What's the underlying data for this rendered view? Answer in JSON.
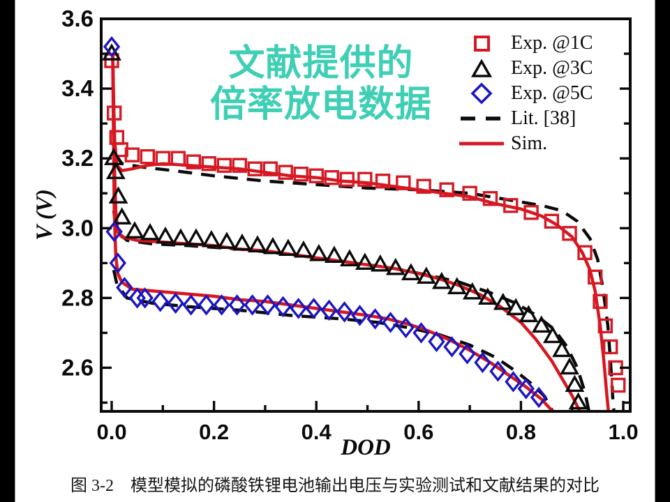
{
  "overlay": {
    "line1": "文献提供的",
    "line2": "倍率放电数据",
    "color": "#3ecfb4"
  },
  "caption": "图 3-2　模型模拟的磷酸铁锂电池输出电压与实验测试和文献结果的对比",
  "legend": {
    "items": [
      {
        "label": "Exp. @1C",
        "marker": "square",
        "color": "#d41a24"
      },
      {
        "label": "Exp. @3C",
        "marker": "triangle",
        "color": "#0a0a0a"
      },
      {
        "label": "Exp. @5C",
        "marker": "diamond",
        "color": "#1c15c0"
      },
      {
        "label": "Lit. [38]",
        "marker": "dashed-line",
        "color": "#0a0a0a"
      },
      {
        "label": "Sim.",
        "marker": "solid-line",
        "color": "#d41a24"
      }
    ]
  },
  "chart_data": {
    "type": "line",
    "xlabel": "DOD",
    "ylabel": "V (V)",
    "xlim": [
      -0.0205,
      1.0136
    ],
    "ylim": [
      2.475,
      3.6
    ],
    "xticks": {
      "values": [
        0.0,
        0.2,
        0.4,
        0.6,
        0.8,
        1.0
      ],
      "labels": [
        "0.0",
        "0.2",
        "0.4",
        "0.6",
        "0.8",
        "1.0"
      ]
    },
    "yticks": {
      "values": [
        2.6,
        2.8,
        3.0,
        3.2,
        3.4,
        3.6
      ],
      "labels": [
        "2.6",
        "2.8",
        "3.0",
        "3.2",
        "3.4",
        "3.6"
      ]
    },
    "xminor": [
      0.1,
      0.3,
      0.5,
      0.7,
      0.9
    ],
    "yminor": [
      2.5,
      2.7,
      2.9,
      3.1,
      3.3,
      3.5
    ],
    "grid": false,
    "legend_position": "top-right",
    "series": [
      {
        "name": "Lit. [38]",
        "kind": "line",
        "dash": true,
        "color": "#0a0a0a",
        "curves": [
          [
            [
              0.003,
              3.28
            ],
            [
              0.008,
              3.21
            ],
            [
              0.02,
              3.185
            ],
            [
              0.06,
              3.175
            ],
            [
              0.12,
              3.165
            ],
            [
              0.2,
              3.15
            ],
            [
              0.3,
              3.135
            ],
            [
              0.4,
              3.125
            ],
            [
              0.5,
              3.115
            ],
            [
              0.6,
              3.11
            ],
            [
              0.7,
              3.1
            ],
            [
              0.78,
              3.08
            ],
            [
              0.84,
              3.065
            ],
            [
              0.88,
              3.05
            ],
            [
              0.91,
              3.02
            ],
            [
              0.935,
              2.97
            ],
            [
              0.95,
              2.91
            ],
            [
              0.96,
              2.83
            ],
            [
              0.97,
              2.72
            ],
            [
              0.975,
              2.62
            ],
            [
              0.98,
              2.5
            ],
            [
              0.982,
              2.475
            ]
          ],
          [
            [
              0.004,
              3.05
            ],
            [
              0.01,
              2.99
            ],
            [
              0.03,
              2.965
            ],
            [
              0.08,
              2.955
            ],
            [
              0.15,
              2.95
            ],
            [
              0.25,
              2.94
            ],
            [
              0.35,
              2.925
            ],
            [
              0.45,
              2.905
            ],
            [
              0.55,
              2.885
            ],
            [
              0.62,
              2.865
            ],
            [
              0.68,
              2.845
            ],
            [
              0.74,
              2.815
            ],
            [
              0.79,
              2.785
            ],
            [
              0.83,
              2.75
            ],
            [
              0.865,
              2.71
            ],
            [
              0.89,
              2.66
            ],
            [
              0.91,
              2.6
            ],
            [
              0.925,
              2.53
            ],
            [
              0.933,
              2.475
            ]
          ],
          [
            [
              0.004,
              2.88
            ],
            [
              0.01,
              2.84
            ],
            [
              0.03,
              2.8
            ],
            [
              0.08,
              2.785
            ],
            [
              0.15,
              2.775
            ],
            [
              0.25,
              2.765
            ],
            [
              0.35,
              2.75
            ],
            [
              0.45,
              2.74
            ],
            [
              0.52,
              2.73
            ],
            [
              0.58,
              2.715
            ],
            [
              0.64,
              2.695
            ],
            [
              0.7,
              2.665
            ],
            [
              0.75,
              2.63
            ],
            [
              0.79,
              2.59
            ],
            [
              0.82,
              2.555
            ],
            [
              0.845,
              2.52
            ],
            [
              0.862,
              2.475
            ]
          ]
        ]
      },
      {
        "name": "Sim.",
        "kind": "line",
        "dash": false,
        "color": "#d8161f",
        "curves": [
          [
            [
              0.002,
              3.5
            ],
            [
              0.004,
              3.35
            ],
            [
              0.006,
              3.25
            ],
            [
              0.01,
              3.18
            ],
            [
              0.02,
              3.165
            ],
            [
              0.04,
              3.17
            ],
            [
              0.07,
              3.18
            ],
            [
              0.1,
              3.185
            ],
            [
              0.15,
              3.18
            ],
            [
              0.2,
              3.175
            ],
            [
              0.25,
              3.17
            ],
            [
              0.3,
              3.16
            ],
            [
              0.35,
              3.15
            ],
            [
              0.4,
              3.145
            ],
            [
              0.45,
              3.135
            ],
            [
              0.5,
              3.13
            ],
            [
              0.55,
              3.12
            ],
            [
              0.6,
              3.11
            ],
            [
              0.65,
              3.1
            ],
            [
              0.7,
              3.09
            ],
            [
              0.75,
              3.07
            ],
            [
              0.8,
              3.055
            ],
            [
              0.84,
              3.035
            ],
            [
              0.87,
              3.01
            ],
            [
              0.9,
              2.975
            ],
            [
              0.92,
              2.93
            ],
            [
              0.935,
              2.88
            ],
            [
              0.945,
              2.82
            ],
            [
              0.955,
              2.72
            ],
            [
              0.962,
              2.62
            ],
            [
              0.968,
              2.52
            ],
            [
              0.971,
              2.475
            ]
          ],
          [
            [
              0.002,
              3.5
            ],
            [
              0.005,
              3.2
            ],
            [
              0.008,
              3.05
            ],
            [
              0.012,
              2.99
            ],
            [
              0.02,
              2.975
            ],
            [
              0.05,
              2.965
            ],
            [
              0.1,
              2.96
            ],
            [
              0.15,
              2.955
            ],
            [
              0.2,
              2.95
            ],
            [
              0.25,
              2.94
            ],
            [
              0.3,
              2.935
            ],
            [
              0.35,
              2.925
            ],
            [
              0.4,
              2.915
            ],
            [
              0.45,
              2.905
            ],
            [
              0.5,
              2.895
            ],
            [
              0.55,
              2.885
            ],
            [
              0.6,
              2.87
            ],
            [
              0.64,
              2.855
            ],
            [
              0.68,
              2.835
            ],
            [
              0.72,
              2.81
            ],
            [
              0.76,
              2.775
            ],
            [
              0.8,
              2.73
            ],
            [
              0.83,
              2.68
            ],
            [
              0.86,
              2.62
            ],
            [
              0.88,
              2.57
            ],
            [
              0.9,
              2.52
            ],
            [
              0.915,
              2.475
            ]
          ],
          [
            [
              0.002,
              3.48
            ],
            [
              0.005,
              3.05
            ],
            [
              0.008,
              2.92
            ],
            [
              0.012,
              2.87
            ],
            [
              0.02,
              2.845
            ],
            [
              0.04,
              2.825
            ],
            [
              0.08,
              2.82
            ],
            [
              0.12,
              2.815
            ],
            [
              0.16,
              2.81
            ],
            [
              0.2,
              2.805
            ],
            [
              0.25,
              2.795
            ],
            [
              0.3,
              2.79
            ],
            [
              0.35,
              2.78
            ],
            [
              0.4,
              2.77
            ],
            [
              0.45,
              2.76
            ],
            [
              0.5,
              2.75
            ],
            [
              0.54,
              2.74
            ],
            [
              0.58,
              2.725
            ],
            [
              0.62,
              2.705
            ],
            [
              0.66,
              2.68
            ],
            [
              0.7,
              2.65
            ],
            [
              0.74,
              2.615
            ],
            [
              0.78,
              2.575
            ],
            [
              0.81,
              2.545
            ],
            [
              0.84,
              2.51
            ],
            [
              0.862,
              2.475
            ]
          ]
        ]
      },
      {
        "name": "Exp. @1C",
        "kind": "markers",
        "marker": "square",
        "color": "#d41a24",
        "points": [
          [
            0.0,
            3.48
          ],
          [
            0.005,
            3.33
          ],
          [
            0.01,
            3.26
          ],
          [
            0.018,
            3.225
          ],
          [
            0.04,
            3.21
          ],
          [
            0.07,
            3.205
          ],
          [
            0.1,
            3.2
          ],
          [
            0.13,
            3.2
          ],
          [
            0.16,
            3.19
          ],
          [
            0.19,
            3.185
          ],
          [
            0.22,
            3.18
          ],
          [
            0.25,
            3.18
          ],
          [
            0.28,
            3.17
          ],
          [
            0.31,
            3.17
          ],
          [
            0.34,
            3.16
          ],
          [
            0.37,
            3.155
          ],
          [
            0.4,
            3.15
          ],
          [
            0.43,
            3.145
          ],
          [
            0.46,
            3.14
          ],
          [
            0.495,
            3.14
          ],
          [
            0.53,
            3.135
          ],
          [
            0.57,
            3.13
          ],
          [
            0.61,
            3.12
          ],
          [
            0.655,
            3.11
          ],
          [
            0.7,
            3.1
          ],
          [
            0.74,
            3.085
          ],
          [
            0.78,
            3.065
          ],
          [
            0.82,
            3.045
          ],
          [
            0.86,
            3.02
          ],
          [
            0.895,
            2.985
          ],
          [
            0.925,
            2.93
          ],
          [
            0.945,
            2.86
          ],
          [
            0.955,
            2.79
          ],
          [
            0.965,
            2.72
          ],
          [
            0.975,
            2.66
          ],
          [
            0.985,
            2.6
          ],
          [
            0.99,
            2.55
          ]
        ]
      },
      {
        "name": "Exp. @3C",
        "kind": "markers",
        "marker": "triangle",
        "color": "#0a0a0a",
        "points": [
          [
            0.0,
            3.5
          ],
          [
            0.004,
            3.2
          ],
          [
            0.008,
            3.16
          ],
          [
            0.013,
            3.09
          ],
          [
            0.02,
            3.03
          ],
          [
            0.045,
            2.99
          ],
          [
            0.075,
            2.985
          ],
          [
            0.105,
            2.975
          ],
          [
            0.135,
            2.97
          ],
          [
            0.165,
            2.97
          ],
          [
            0.195,
            2.965
          ],
          [
            0.225,
            2.96
          ],
          [
            0.255,
            2.955
          ],
          [
            0.285,
            2.95
          ],
          [
            0.315,
            2.945
          ],
          [
            0.345,
            2.94
          ],
          [
            0.375,
            2.935
          ],
          [
            0.405,
            2.925
          ],
          [
            0.435,
            2.92
          ],
          [
            0.465,
            2.91
          ],
          [
            0.495,
            2.9
          ],
          [
            0.525,
            2.895
          ],
          [
            0.555,
            2.885
          ],
          [
            0.585,
            2.87
          ],
          [
            0.615,
            2.86
          ],
          [
            0.645,
            2.845
          ],
          [
            0.675,
            2.83
          ],
          [
            0.705,
            2.815
          ],
          [
            0.735,
            2.8
          ],
          [
            0.765,
            2.785
          ],
          [
            0.79,
            2.77
          ],
          [
            0.815,
            2.75
          ],
          [
            0.84,
            2.72
          ],
          [
            0.862,
            2.69
          ],
          [
            0.88,
            2.65
          ],
          [
            0.895,
            2.6
          ],
          [
            0.905,
            2.55
          ],
          [
            0.912,
            2.5
          ]
        ]
      },
      {
        "name": "Exp. @5C",
        "kind": "markers",
        "marker": "diamond",
        "color": "#1c15c0",
        "points": [
          [
            0.0,
            3.52
          ],
          [
            0.005,
            2.99
          ],
          [
            0.012,
            2.9
          ],
          [
            0.025,
            2.83
          ],
          [
            0.05,
            2.8
          ],
          [
            0.065,
            2.8
          ],
          [
            0.095,
            2.79
          ],
          [
            0.125,
            2.785
          ],
          [
            0.155,
            2.78
          ],
          [
            0.185,
            2.78
          ],
          [
            0.215,
            2.78
          ],
          [
            0.245,
            2.78
          ],
          [
            0.275,
            2.78
          ],
          [
            0.305,
            2.78
          ],
          [
            0.335,
            2.775
          ],
          [
            0.365,
            2.77
          ],
          [
            0.395,
            2.77
          ],
          [
            0.425,
            2.765
          ],
          [
            0.455,
            2.76
          ],
          [
            0.485,
            2.75
          ],
          [
            0.515,
            2.74
          ],
          [
            0.545,
            2.73
          ],
          [
            0.575,
            2.715
          ],
          [
            0.605,
            2.7
          ],
          [
            0.635,
            2.675
          ],
          [
            0.665,
            2.66
          ],
          [
            0.695,
            2.64
          ],
          [
            0.725,
            2.615
          ],
          [
            0.755,
            2.59
          ],
          [
            0.785,
            2.56
          ],
          [
            0.81,
            2.54
          ],
          [
            0.835,
            2.515
          ]
        ]
      }
    ]
  }
}
